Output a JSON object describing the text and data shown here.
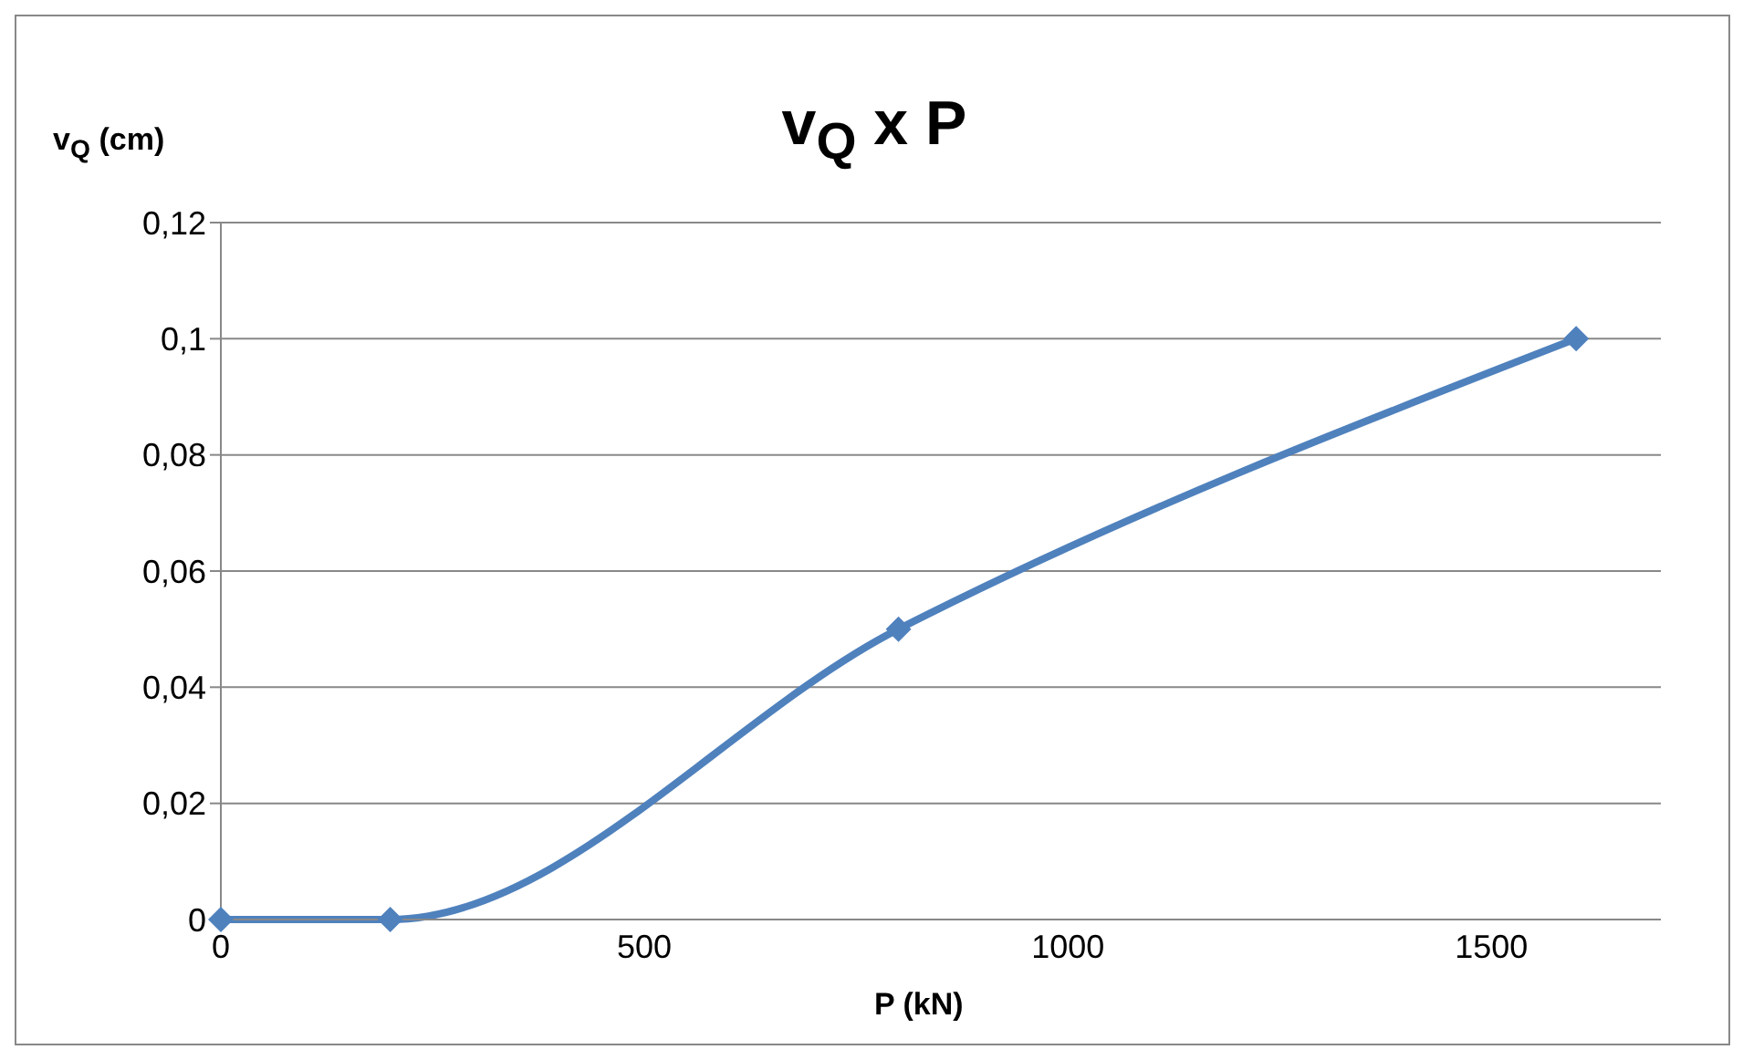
{
  "chart_data": {
    "type": "line",
    "title": "v$_{Q}$ x P",
    "xlabel": "P (kN)",
    "ylabel": "v$_{Q}$ (cm)",
    "x": [
      0,
      200,
      800,
      1600
    ],
    "series": [
      {
        "color": "#4f81bd",
        "values": [
          0,
          0,
          0.05,
          0.1
        ]
      }
    ],
    "xlim": [
      0,
      1700
    ],
    "xticks": [
      0,
      500,
      1000,
      1500
    ],
    "ylim": [
      0,
      0.12
    ],
    "yticks": [
      {
        "value": 0,
        "label": "0"
      },
      {
        "value": 0.02,
        "label": "0,02"
      },
      {
        "value": 0.04,
        "label": "0,04"
      },
      {
        "value": 0.06,
        "label": "0,06"
      },
      {
        "value": 0.08,
        "label": "0,08"
      },
      {
        "value": 0.1,
        "label": "0,1"
      },
      {
        "value": 0.12,
        "label": "0,12"
      }
    ],
    "grid": "y",
    "marker": "diamond",
    "line_style": "solid"
  }
}
